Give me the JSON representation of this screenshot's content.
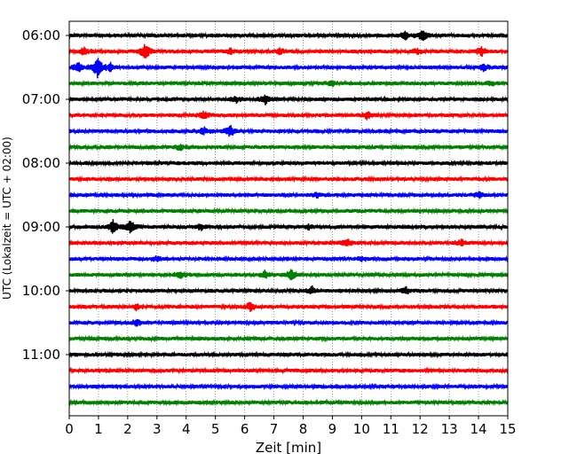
{
  "chart_data": {
    "type": "line",
    "title": "",
    "xlabel": "Zeit  [min]",
    "ylabel": "UTC (Lokalzeit = UTC + 02:00)",
    "xlim": [
      0,
      15
    ],
    "x_ticks": [
      "0",
      "1",
      "2",
      "3",
      "4",
      "5",
      "6",
      "7",
      "8",
      "9",
      "10",
      "11",
      "12",
      "13",
      "14",
      "15"
    ],
    "y_ticks": [
      "06:00",
      "07:00",
      "08:00",
      "09:00",
      "10:00",
      "11:00"
    ],
    "grid": "vertical dotted",
    "trace_interval_minutes": 15,
    "start_time": "06:00",
    "colors": [
      "#000000",
      "#ff0000",
      "#0000ff",
      "#008000"
    ],
    "series": [
      {
        "values": [
          {
            "x": 11.5,
            "amp": 0.4
          },
          {
            "x": 12.1,
            "amp": 0.7
          }
        ]
      },
      {
        "values": [
          {
            "x": 0.5,
            "amp": 0.45
          },
          {
            "x": 2.6,
            "amp": 0.9
          },
          {
            "x": 5.5,
            "amp": 0.3
          },
          {
            "x": 7.2,
            "amp": 0.3
          },
          {
            "x": 11.9,
            "amp": 0.3
          },
          {
            "x": 14.1,
            "amp": 0.55
          }
        ]
      },
      {
        "values": [
          {
            "x": 0.3,
            "amp": 0.6
          },
          {
            "x": 0.95,
            "amp": 1.3
          },
          {
            "x": 1.4,
            "amp": 0.45
          },
          {
            "x": 14.2,
            "amp": 0.4
          }
        ]
      },
      {
        "values": [
          {
            "x": 9.0,
            "amp": 0.3
          },
          {
            "x": 14.4,
            "amp": 0.3
          }
        ]
      },
      {
        "values": [
          {
            "x": 6.7,
            "amp": 0.6
          },
          {
            "x": 5.7,
            "amp": 0.35
          }
        ]
      },
      {
        "values": [
          {
            "x": 4.6,
            "amp": 0.45
          },
          {
            "x": 10.2,
            "amp": 0.45
          }
        ]
      },
      {
        "values": [
          {
            "x": 4.6,
            "amp": 0.4
          },
          {
            "x": 5.5,
            "amp": 0.7
          }
        ]
      },
      {
        "values": [
          {
            "x": 3.8,
            "amp": 0.35
          }
        ]
      },
      {
        "values": []
      },
      {
        "values": []
      },
      {
        "values": [
          {
            "x": 14.0,
            "amp": 0.35
          },
          {
            "x": 8.5,
            "amp": 0.25
          }
        ]
      },
      {
        "values": []
      },
      {
        "values": [
          {
            "x": 1.5,
            "amp": 0.8
          },
          {
            "x": 2.1,
            "amp": 0.8
          },
          {
            "x": 4.5,
            "amp": 0.3
          },
          {
            "x": 8.2,
            "amp": 0.3
          }
        ]
      },
      {
        "values": [
          {
            "x": 9.5,
            "amp": 0.5
          },
          {
            "x": 13.4,
            "amp": 0.35
          }
        ]
      },
      {
        "values": [
          {
            "x": 3.0,
            "amp": 0.3
          },
          {
            "x": 10.0,
            "amp": 0.25
          }
        ]
      },
      {
        "values": [
          {
            "x": 3.8,
            "amp": 0.45
          },
          {
            "x": 6.7,
            "amp": 0.5
          },
          {
            "x": 7.6,
            "amp": 0.7
          }
        ]
      },
      {
        "values": [
          {
            "x": 8.3,
            "amp": 0.4
          },
          {
            "x": 11.5,
            "amp": 0.45
          }
        ]
      },
      {
        "values": [
          {
            "x": 2.3,
            "amp": 0.3
          },
          {
            "x": 6.2,
            "amp": 0.45
          }
        ]
      },
      {
        "values": [
          {
            "x": 2.3,
            "amp": 0.4
          }
        ]
      },
      {
        "values": []
      },
      {
        "values": []
      },
      {
        "values": []
      },
      {
        "values": []
      },
      {
        "values": []
      }
    ]
  }
}
